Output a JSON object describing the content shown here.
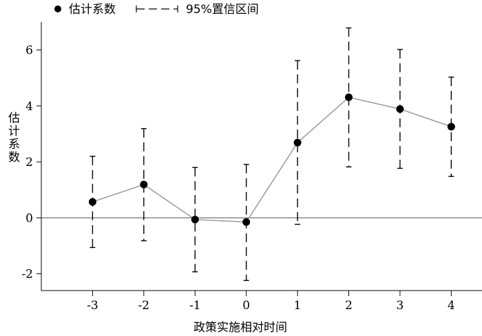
{
  "chart_data": {
    "type": "scatter",
    "title": "",
    "xlabel": "政策实施相对时间",
    "ylabel": "估计系数",
    "xlim": [
      -4,
      4.6
    ],
    "ylim": [
      -2.6,
      7
    ],
    "x_ticks": [
      -3,
      -2,
      -1,
      0,
      1,
      2,
      3,
      4
    ],
    "x_tick_labels": [
      "-3",
      "-2",
      "-1",
      "0",
      "1",
      "2",
      "3",
      "4"
    ],
    "y_ticks": [
      -2,
      0,
      2,
      4,
      6
    ],
    "y_tick_labels": [
      "-2",
      "0",
      "2",
      "4",
      "6"
    ],
    "zero_line": 0,
    "grid": false,
    "legend_position": "top-left",
    "series": [
      {
        "name": "估计系数",
        "x": [
          -3,
          -2,
          -1,
          0,
          1,
          2,
          3,
          4
        ],
        "y": [
          0.57,
          1.19,
          -0.06,
          -0.15,
          2.69,
          4.31,
          3.89,
          3.26
        ],
        "color": "#000000",
        "line_color": "#999999"
      },
      {
        "name": "95%置信区间",
        "x": [
          -3,
          -2,
          -1,
          0,
          1,
          2,
          3,
          4
        ],
        "lower": [
          -1.06,
          -0.82,
          -1.93,
          -2.24,
          -0.23,
          1.82,
          1.77,
          1.48
        ],
        "upper": [
          2.2,
          3.19,
          1.8,
          1.91,
          5.62,
          6.79,
          6.02,
          5.03
        ],
        "color": "#000000"
      }
    ]
  }
}
